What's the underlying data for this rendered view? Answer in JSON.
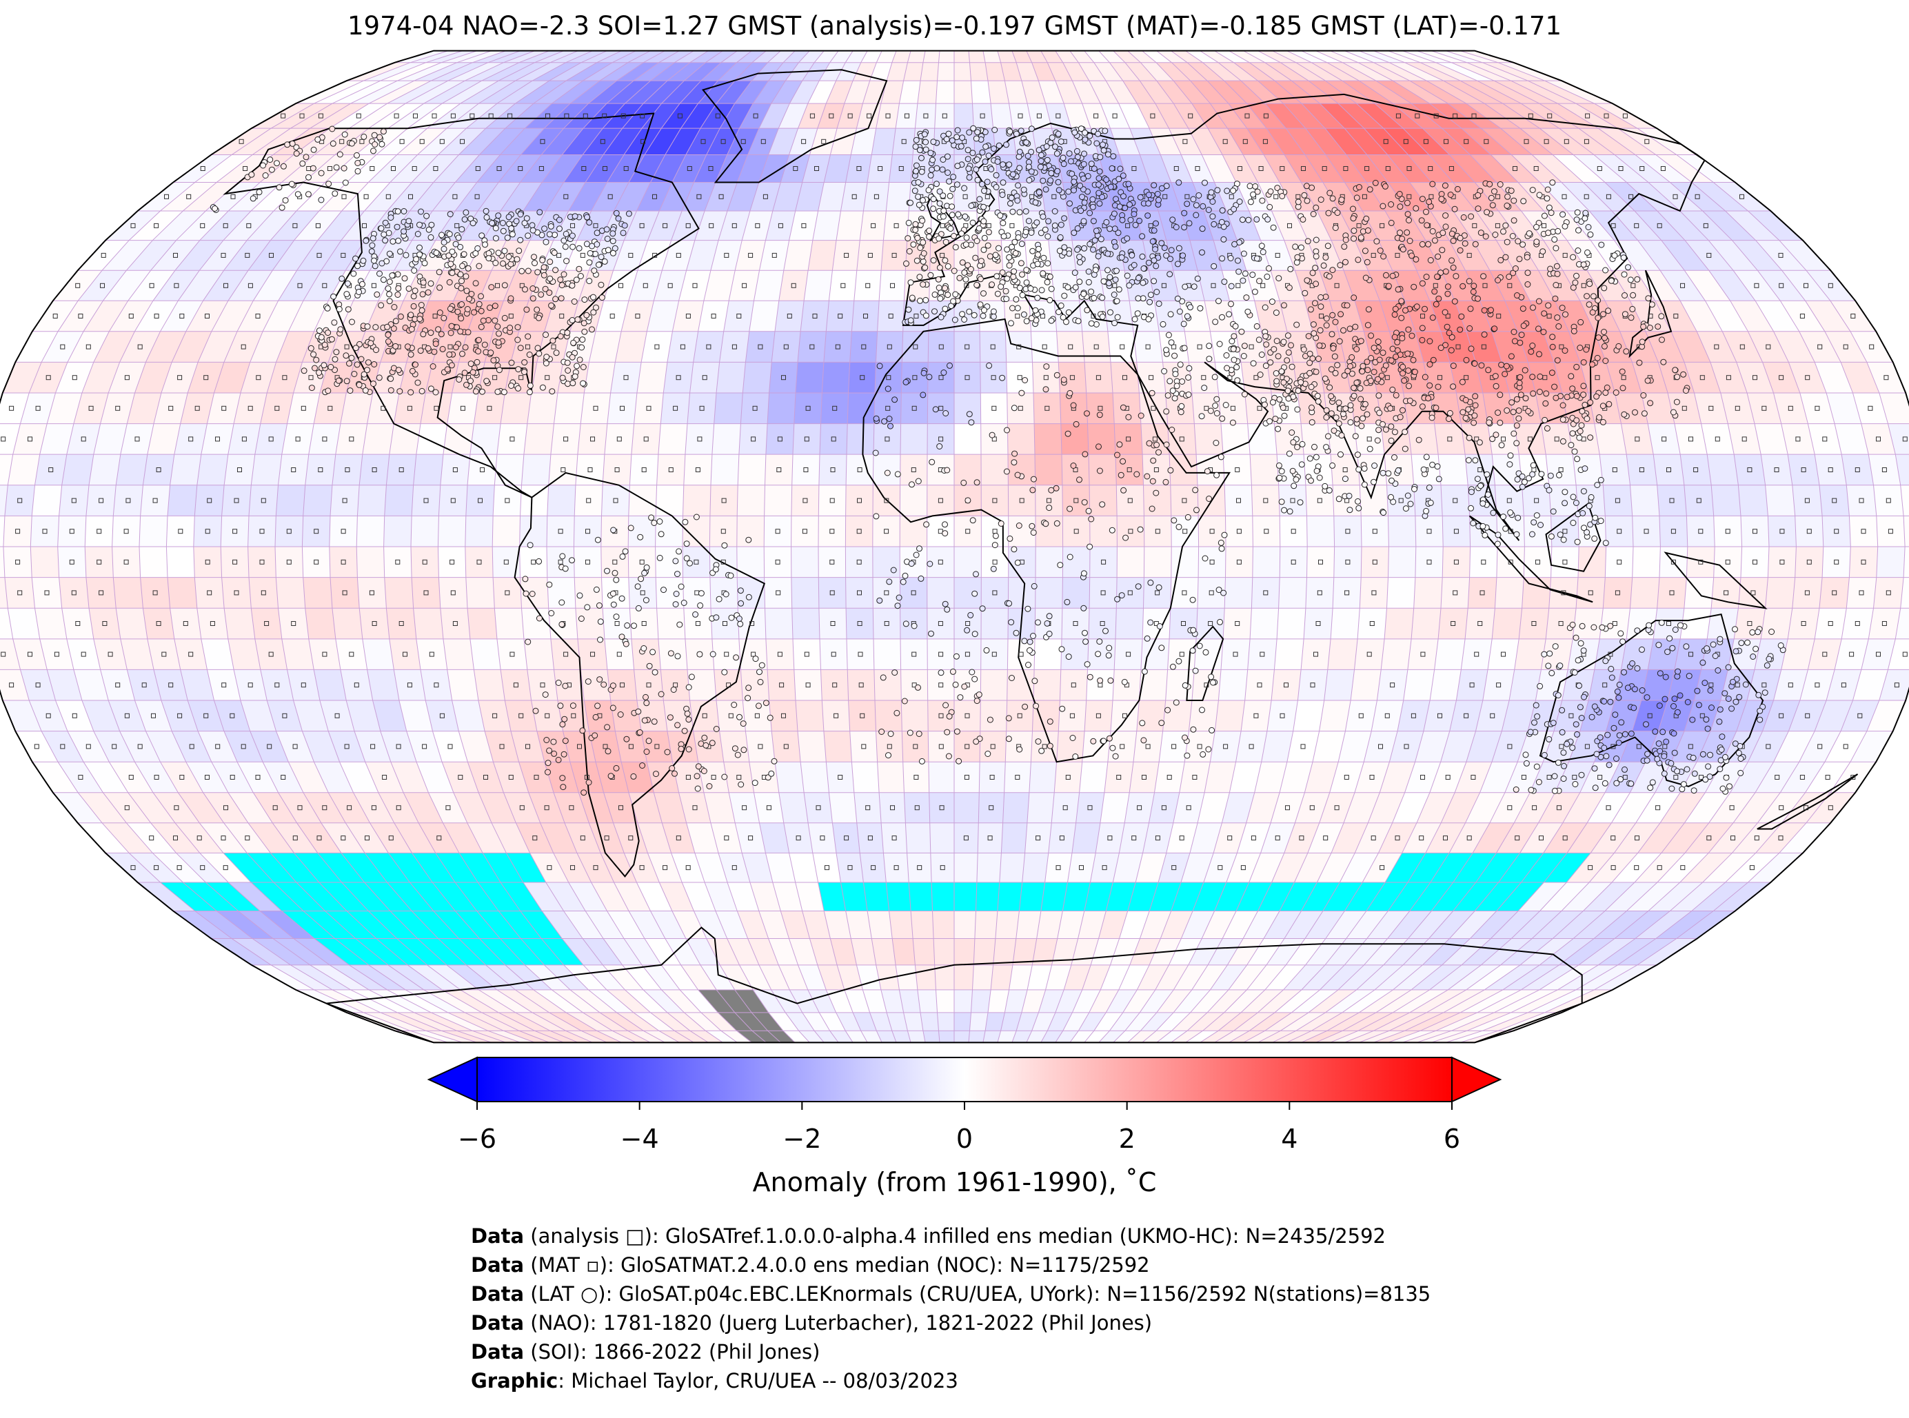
{
  "title": "1974-04 NAO=-2.3 SOI=1.27 GMST (analysis)=-0.197 GMST (MAT)=-0.185 GMST (LAT)=-0.171",
  "colorbar": {
    "label": "Anomaly (from 1961-1990), ˚C",
    "ticks": [
      "−6",
      "−4",
      "−2",
      "0",
      "2",
      "4",
      "6"
    ],
    "tick_values": [
      -6,
      -4,
      -2,
      0,
      2,
      4,
      6
    ],
    "min": -6,
    "max": 6,
    "extend": "both",
    "colormap": "bwr",
    "color_low": "#0000ff",
    "color_mid": "#ffffff",
    "color_high": "#ff0000"
  },
  "map": {
    "projection": "Robinson",
    "grid": "5-degree",
    "ocean_cells_marker": "square",
    "station_marker": "circle",
    "missing_color": "#00ffff",
    "land_missing_color": "#808080",
    "grid_line_color": "#c9a0d8"
  },
  "credits": [
    {
      "label": "Data",
      "text": " (analysis □): GloSATref.1.0.0.0-alpha.4 infilled ens median (UKMO-HC): N=2435/2592"
    },
    {
      "label": "Data",
      "text": " (MAT ▫): GloSATMAT.2.4.0.0 ens median (NOC): N=1175/2592"
    },
    {
      "label": "Data",
      "text": " (LAT ○): GloSAT.p04c.EBC.LEKnormals (CRU/UEA, UYork): N=1156/2592 N(stations)=8135"
    },
    {
      "label": "Data",
      "text": " (NAO): 1781-1820 (Juerg Luterbacher), 1821-2022 (Phil Jones)"
    },
    {
      "label": "Data",
      "text": " (SOI): 1866-2022 (Phil Jones)"
    },
    {
      "label": "Graphic",
      "text": ": Michael Taylor, CRU/UEA -- 08/03/2023"
    }
  ]
}
